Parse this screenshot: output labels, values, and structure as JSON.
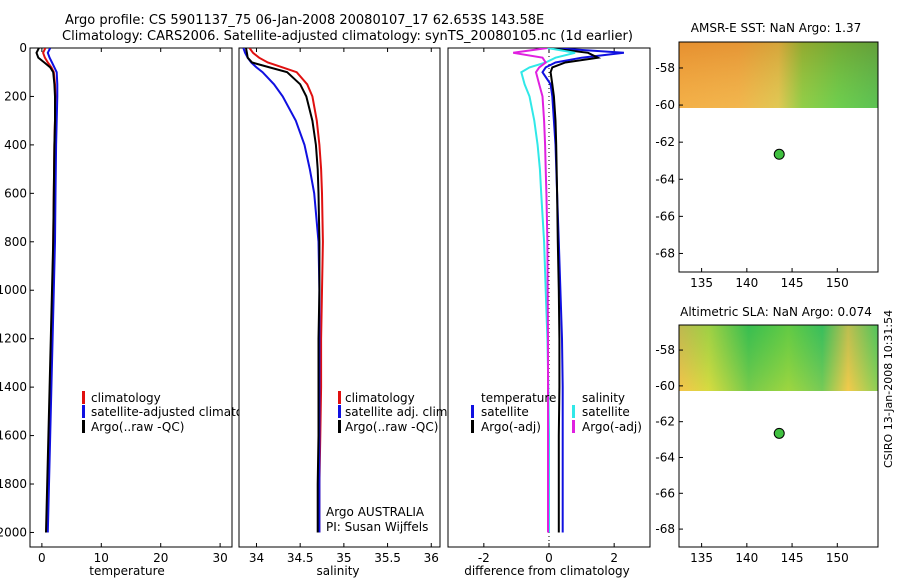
{
  "titles": {
    "line1": "Argo profile: CS 5901137_75 06-Jan-2008 20080107_17 62.653S 143.58E",
    "line2": "Climatology: CARS2006. Satellite-adjusted climatology: synTS_20080105.nc (1d earlier)"
  },
  "stamp": "CSIRO 13-Jan-2008 10:31:54",
  "colors": {
    "red": "#e01010",
    "blue": "#1010e0",
    "black": "#000000",
    "cyan": "#30e8e8",
    "magenta": "#e020e0",
    "dot_fill": "#40c040"
  },
  "chart_data": [
    {
      "type": "line",
      "name": "temperature-panel",
      "xlabel": "temperature",
      "xlim": [
        -2,
        32
      ],
      "ylim": [
        2060,
        0
      ],
      "xticks": [
        0,
        10,
        20,
        30
      ],
      "yticks": [
        0,
        200,
        400,
        600,
        800,
        1000,
        1200,
        1400,
        1600,
        1800,
        2000
      ],
      "legend": {
        "placement": "lower-right",
        "entries": [
          "climatology",
          "satellite-adjusted climatology",
          "Argo(..raw -QC)"
        ]
      },
      "series": [
        {
          "name": "climatology",
          "color": "red",
          "depth": [
            0,
            20,
            40,
            60,
            80,
            100,
            150,
            200,
            300,
            400,
            600,
            800,
            1000,
            1200,
            1400,
            1600,
            1800,
            2000
          ],
          "values": [
            0.6,
            0.2,
            0.5,
            1.0,
            1.6,
            2.0,
            2.2,
            2.3,
            2.2,
            2.1,
            2.0,
            1.9,
            1.8,
            1.6,
            1.4,
            1.2,
            1.0,
            0.8
          ]
        },
        {
          "name": "satellite-adjusted climatology",
          "color": "blue",
          "depth": [
            0,
            20,
            40,
            60,
            80,
            100,
            150,
            200,
            300,
            400,
            600,
            800,
            1000,
            1200,
            1400,
            1600,
            1800,
            2000
          ],
          "values": [
            1.4,
            1.0,
            1.3,
            1.7,
            2.1,
            2.5,
            2.6,
            2.6,
            2.5,
            2.4,
            2.3,
            2.2,
            2.0,
            1.8,
            1.6,
            1.4,
            1.2,
            1.0
          ]
        },
        {
          "name": "Argo(..raw -QC)",
          "color": "black",
          "depth": [
            0,
            20,
            40,
            60,
            80,
            100,
            150,
            200,
            300,
            400,
            600,
            800,
            1000,
            1200,
            1400,
            1600,
            1800,
            2000
          ],
          "values": [
            -0.5,
            -0.9,
            -0.6,
            0.4,
            1.4,
            1.9,
            2.1,
            2.2,
            2.2,
            2.1,
            2.0,
            1.9,
            1.7,
            1.5,
            1.3,
            1.1,
            0.9,
            0.7
          ]
        }
      ]
    },
    {
      "type": "line",
      "name": "salinity-panel",
      "xlabel": "salinity",
      "xlim": [
        33.8,
        36.1
      ],
      "ylim": [
        2060,
        0
      ],
      "xticks": [
        34,
        34.5,
        35,
        35.5,
        36
      ],
      "legend": {
        "placement": "lower-right",
        "entries": [
          "climatology",
          "satellite adj. clim.",
          "Argo(..raw -QC)"
        ]
      },
      "annotations": [
        "Argo AUSTRALIA",
        "PI: Susan Wijffels"
      ],
      "series": [
        {
          "name": "climatology",
          "color": "red",
          "depth": [
            0,
            20,
            40,
            60,
            80,
            100,
            150,
            200,
            300,
            400,
            500,
            600,
            800,
            1000,
            1200,
            1400,
            1600,
            1800,
            2000
          ],
          "values": [
            33.92,
            33.96,
            34.03,
            34.13,
            34.3,
            34.46,
            34.58,
            34.64,
            34.69,
            34.72,
            34.74,
            34.75,
            34.76,
            34.75,
            34.74,
            34.74,
            34.73,
            34.72,
            34.72
          ]
        },
        {
          "name": "satellite adj. clim.",
          "color": "blue",
          "depth": [
            0,
            20,
            40,
            60,
            80,
            100,
            150,
            200,
            300,
            400,
            500,
            600,
            800,
            1000,
            1200,
            1400,
            1600,
            1800,
            2000
          ],
          "values": [
            33.85,
            33.87,
            33.9,
            33.94,
            34.0,
            34.07,
            34.2,
            34.3,
            34.45,
            34.55,
            34.61,
            34.66,
            34.71,
            34.72,
            34.72,
            34.72,
            34.72,
            34.72,
            34.72
          ]
        },
        {
          "name": "Argo(..raw -QC)",
          "color": "black",
          "depth": [
            0,
            20,
            40,
            60,
            80,
            100,
            150,
            200,
            300,
            400,
            500,
            600,
            800,
            1000,
            1200,
            1400,
            1600,
            1800,
            2000
          ],
          "values": [
            33.88,
            33.89,
            33.9,
            33.95,
            34.15,
            34.35,
            34.5,
            34.57,
            34.64,
            34.68,
            34.7,
            34.71,
            34.72,
            34.72,
            34.71,
            34.71,
            34.71,
            34.7,
            34.7
          ]
        }
      ]
    },
    {
      "type": "line",
      "name": "difference-panel",
      "xlabel": "difference from climatology",
      "xlim": [
        -3.1,
        3.1
      ],
      "ylim": [
        2060,
        0
      ],
      "xticks": [
        -2,
        0,
        2
      ],
      "legend": {
        "placement": "lower-center",
        "groups": [
          {
            "title": "temperature",
            "entries": [
              "satellite",
              "Argo(-adj)"
            ]
          },
          {
            "title": "salinity",
            "entries": [
              "satellite",
              "Argo(-adj)"
            ]
          }
        ]
      },
      "series": [
        {
          "name": "temperature satellite",
          "color": "blue",
          "depth": [
            0,
            20,
            40,
            60,
            80,
            100,
            150,
            200,
            300,
            400,
            600,
            800,
            1000,
            1200,
            1400,
            1600,
            1800,
            2000
          ],
          "values": [
            0.1,
            2.3,
            1.0,
            0.2,
            -0.1,
            -0.2,
            0.05,
            0.1,
            0.15,
            0.2,
            0.25,
            0.3,
            0.35,
            0.4,
            0.42,
            0.42,
            0.42,
            0.42
          ]
        },
        {
          "name": "temperature Argo(-adj)",
          "color": "black",
          "depth": [
            0,
            20,
            40,
            60,
            80,
            100,
            150,
            200,
            300,
            400,
            600,
            800,
            1000,
            1200,
            1400,
            1600,
            1800,
            2000
          ],
          "values": [
            0.0,
            1.2,
            1.5,
            0.5,
            0.1,
            0.05,
            0.1,
            0.15,
            0.2,
            0.22,
            0.25,
            0.27,
            0.3,
            0.32,
            0.32,
            0.3,
            0.3,
            0.3
          ]
        },
        {
          "name": "salinity satellite",
          "color": "cyan",
          "depth": [
            0,
            20,
            40,
            60,
            80,
            100,
            150,
            200,
            300,
            400,
            500,
            600,
            800,
            1000,
            1200,
            1400,
            1600,
            1800,
            2000
          ],
          "values": [
            -0.05,
            0.8,
            0.2,
            -0.1,
            -0.6,
            -0.85,
            -0.75,
            -0.6,
            -0.45,
            -0.35,
            -0.28,
            -0.24,
            -0.15,
            -0.1,
            -0.05,
            -0.02,
            0.0,
            0.0,
            0.0
          ]
        },
        {
          "name": "salinity Argo(-adj)",
          "color": "magenta",
          "depth": [
            0,
            20,
            40,
            60,
            80,
            100,
            150,
            200,
            300,
            400,
            500,
            600,
            800,
            1000,
            1200,
            1400,
            1600,
            1800,
            2000
          ],
          "values": [
            -0.05,
            -1.1,
            -0.2,
            -0.1,
            -0.3,
            -0.4,
            -0.3,
            -0.2,
            -0.15,
            -0.12,
            -0.1,
            -0.08,
            -0.05,
            -0.04,
            -0.03,
            -0.03,
            -0.03,
            -0.03,
            -0.03
          ]
        }
      ]
    },
    {
      "type": "heatmap",
      "name": "sst-map",
      "title": "AMSR-E SST: NaN Argo: 1.37",
      "xlim": [
        132.5,
        154.5
      ],
      "ylim": [
        -69,
        -56.6
      ],
      "xticks": [
        135,
        140,
        145,
        150
      ],
      "yticks": [
        -58,
        -60,
        -62,
        -64,
        -66,
        -68
      ],
      "data_extent_lat": [
        -60.1,
        -56.6
      ],
      "marker": {
        "lon": 143.58,
        "lat": -62.653
      }
    },
    {
      "type": "heatmap",
      "name": "sla-map",
      "title": "Altimetric SLA: NaN Argo: 0.074",
      "xlim": [
        132.5,
        154.5
      ],
      "ylim": [
        -69,
        -56.6
      ],
      "xticks": [
        135,
        140,
        145,
        150
      ],
      "yticks": [
        -58,
        -60,
        -62,
        -64,
        -66,
        -68
      ],
      "data_extent_lat": [
        -60.1,
        -56.6
      ],
      "marker": {
        "lon": 143.58,
        "lat": -62.653
      }
    }
  ]
}
